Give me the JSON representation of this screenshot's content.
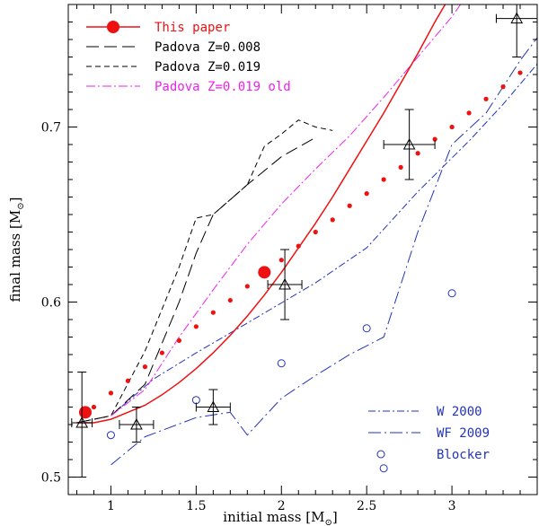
{
  "chart_data": {
    "type": "scatter",
    "xlabel": "initial mass",
    "ylabel": "final mass",
    "unit_base": "M",
    "unit_sub": "⊙",
    "xlim": [
      0.75,
      3.5
    ],
    "ylim": [
      0.49,
      0.77
    ],
    "x_ticks": [
      1,
      1.5,
      2,
      2.5,
      3
    ],
    "x_tick_labels": [
      "1",
      "1.5",
      "2",
      "2.5",
      "3"
    ],
    "y_ticks": [
      0.5,
      0.6,
      0.7
    ],
    "y_tick_labels": [
      "0.5",
      "0.6",
      "0.7"
    ],
    "legend_top": [
      {
        "key": "this_paper",
        "label": "This paper",
        "color": "#ee1111"
      },
      {
        "key": "padova_008",
        "label": "Padova Z=0.008",
        "color": "#000000"
      },
      {
        "key": "padova_019",
        "label": "Padova Z=0.019",
        "color": "#000000"
      },
      {
        "key": "padova_old",
        "label": "Padova Z=0.019 old",
        "color": "#ee22ee"
      }
    ],
    "legend_bottom": [
      {
        "key": "w2000",
        "label": "W 2000",
        "color": "#2233bb"
      },
      {
        "key": "wf2009",
        "label": "WF 2009",
        "color": "#2233bb"
      },
      {
        "key": "blocker",
        "label": "Blocker",
        "color": "#2233bb"
      }
    ],
    "series": {
      "this_paper_curve": [
        [
          0.8,
          0.531
        ],
        [
          0.9,
          0.531
        ],
        [
          1.0,
          0.533
        ],
        [
          1.1,
          0.537
        ],
        [
          1.2,
          0.541
        ],
        [
          1.3,
          0.547
        ],
        [
          1.4,
          0.554
        ],
        [
          1.5,
          0.562
        ],
        [
          1.6,
          0.571
        ],
        [
          1.7,
          0.581
        ],
        [
          1.8,
          0.592
        ],
        [
          1.9,
          0.604
        ],
        [
          2.0,
          0.617
        ],
        [
          2.1,
          0.631
        ],
        [
          2.2,
          0.645
        ],
        [
          2.3,
          0.66
        ],
        [
          2.4,
          0.676
        ],
        [
          2.5,
          0.692
        ],
        [
          2.6,
          0.708
        ],
        [
          2.7,
          0.725
        ],
        [
          2.8,
          0.742
        ],
        [
          2.9,
          0.76
        ],
        [
          2.96,
          0.77
        ]
      ],
      "this_paper_dots": [
        [
          0.9,
          0.54
        ],
        [
          1.0,
          0.548
        ],
        [
          1.1,
          0.555
        ],
        [
          1.2,
          0.563
        ],
        [
          1.3,
          0.571
        ],
        [
          1.4,
          0.578
        ],
        [
          1.5,
          0.586
        ],
        [
          1.6,
          0.594
        ],
        [
          1.7,
          0.601
        ],
        [
          1.8,
          0.609
        ],
        [
          1.9,
          0.617
        ],
        [
          2.0,
          0.624
        ],
        [
          2.1,
          0.632
        ],
        [
          2.2,
          0.64
        ],
        [
          2.3,
          0.647
        ],
        [
          2.4,
          0.655
        ],
        [
          2.5,
          0.662
        ],
        [
          2.6,
          0.67
        ],
        [
          2.7,
          0.677
        ],
        [
          2.8,
          0.685
        ],
        [
          2.9,
          0.693
        ],
        [
          3.0,
          0.7
        ],
        [
          3.1,
          0.708
        ],
        [
          3.2,
          0.716
        ],
        [
          3.3,
          0.723
        ],
        [
          3.4,
          0.731
        ]
      ],
      "this_paper_big_points": [
        [
          0.85,
          0.537
        ],
        [
          1.9,
          0.617
        ]
      ],
      "padova_008": [
        [
          0.8,
          0.531
        ],
        [
          1.0,
          0.535
        ],
        [
          1.2,
          0.553
        ],
        [
          1.4,
          0.6
        ],
        [
          1.5,
          0.628
        ],
        [
          1.6,
          0.65
        ],
        [
          1.8,
          0.667
        ],
        [
          2.0,
          0.683
        ],
        [
          2.2,
          0.694
        ]
      ],
      "padova_019": [
        [
          0.8,
          0.531
        ],
        [
          1.0,
          0.535
        ],
        [
          1.2,
          0.572
        ],
        [
          1.4,
          0.62
        ],
        [
          1.5,
          0.648
        ],
        [
          1.6,
          0.65
        ],
        [
          1.8,
          0.667
        ],
        [
          1.9,
          0.689
        ],
        [
          2.0,
          0.696
        ],
        [
          2.1,
          0.704
        ],
        [
          2.2,
          0.7
        ],
        [
          2.3,
          0.698
        ]
      ],
      "padova_old": [
        [
          1.0,
          0.535
        ],
        [
          1.2,
          0.55
        ],
        [
          1.4,
          0.58
        ],
        [
          1.6,
          0.607
        ],
        [
          1.8,
          0.633
        ],
        [
          2.0,
          0.656
        ],
        [
          2.2,
          0.676
        ],
        [
          2.4,
          0.695
        ],
        [
          2.6,
          0.717
        ],
        [
          2.8,
          0.74
        ],
        [
          3.0,
          0.763
        ],
        [
          3.05,
          0.77
        ]
      ],
      "w2000": [
        [
          1.0,
          0.535
        ],
        [
          1.25,
          0.556
        ],
        [
          1.5,
          0.571
        ],
        [
          1.8,
          0.588
        ],
        [
          2.2,
          0.611
        ],
        [
          2.5,
          0.631
        ],
        [
          2.8,
          0.663
        ],
        [
          3.1,
          0.692
        ],
        [
          3.3,
          0.713
        ],
        [
          3.5,
          0.736
        ]
      ],
      "wf2009": [
        [
          1.0,
          0.507
        ],
        [
          1.2,
          0.523
        ],
        [
          1.5,
          0.534
        ],
        [
          1.7,
          0.537
        ],
        [
          1.8,
          0.524
        ],
        [
          2.0,
          0.545
        ],
        [
          2.2,
          0.558
        ],
        [
          2.4,
          0.57
        ],
        [
          2.6,
          0.58
        ],
        [
          2.8,
          0.64
        ],
        [
          3.0,
          0.69
        ],
        [
          3.2,
          0.708
        ],
        [
          3.4,
          0.738
        ],
        [
          3.5,
          0.751
        ]
      ],
      "blocker": [
        [
          1.0,
          0.524
        ],
        [
          1.5,
          0.544
        ],
        [
          2.0,
          0.565
        ],
        [
          2.5,
          0.585
        ],
        [
          2.6,
          0.505
        ],
        [
          3.0,
          0.605
        ]
      ],
      "clusters": [
        {
          "x": 0.83,
          "y": 0.531,
          "xerr": [
            0.06,
            0.06
          ],
          "yerr": [
            0.031,
            0.029
          ]
        },
        {
          "x": 1.15,
          "y": 0.53,
          "xerr": [
            0.1,
            0.1
          ],
          "yerr": [
            0.01,
            0.01
          ]
        },
        {
          "x": 1.6,
          "y": 0.54,
          "xerr": [
            0.1,
            0.1
          ],
          "yerr": [
            0.01,
            0.01
          ]
        },
        {
          "x": 2.02,
          "y": 0.61,
          "xerr": [
            0.1,
            0.1
          ],
          "yerr": [
            0.02,
            0.02
          ]
        },
        {
          "x": 2.75,
          "y": 0.69,
          "xerr": [
            0.15,
            0.15
          ],
          "yerr": [
            0.02,
            0.02
          ]
        },
        {
          "x": 3.38,
          "y": 0.762,
          "xerr": [
            0.12,
            0.12
          ],
          "yerr": [
            0.022,
            0.02
          ]
        }
      ]
    }
  }
}
